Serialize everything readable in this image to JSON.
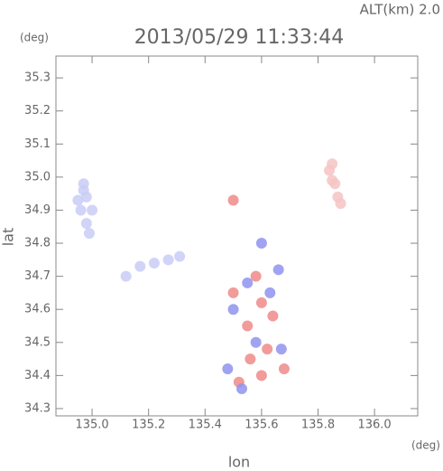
{
  "chart_data": {
    "type": "scatter",
    "title": "2013/05/29 11:33:44",
    "altitude_label": "ALT(km) 2.0",
    "y_unit": "(deg)",
    "x_unit": "(deg)",
    "x_label": "lon",
    "y_label": "lat",
    "xlim": [
      134.872,
      136.153
    ],
    "ylim": [
      34.278,
      35.366
    ],
    "xticks": [
      {
        "value": 135,
        "label": "135.0"
      },
      135.2,
      135.4,
      135.6,
      135.8,
      {
        "value": 136,
        "label": "136.0"
      }
    ],
    "yticks": [
      34.3,
      34.4,
      34.5,
      34.6,
      34.7,
      34.8,
      34.9,
      {
        "value": 35,
        "label": "35.0"
      },
      35.1,
      35.2,
      35.3
    ],
    "series": [
      {
        "color": "#c9ccf6",
        "x": [
          134.97,
          134.98,
          134.96,
          134.98,
          134.99,
          135.0,
          134.95,
          134.97,
          135.17,
          135.22,
          135.27,
          135.31,
          135.12
        ],
        "values": [
          34.98,
          34.94,
          34.9,
          34.86,
          34.83,
          34.9,
          34.93,
          34.96,
          34.73,
          34.74,
          34.75,
          34.76,
          34.7
        ]
      },
      {
        "color": "#f6c3c3",
        "x": [
          135.84,
          135.86,
          135.87,
          135.85,
          135.88,
          135.85
        ],
        "values": [
          35.02,
          34.98,
          34.94,
          34.99,
          34.92,
          35.04
        ]
      },
      {
        "color": "#f08a8a",
        "x": [
          135.5,
          135.6,
          135.55,
          135.62,
          135.52,
          135.6,
          135.68,
          135.5,
          135.58,
          135.64,
          135.56
        ],
        "values": [
          34.65,
          34.62,
          34.55,
          34.48,
          34.38,
          34.4,
          34.42,
          34.93,
          34.7,
          34.58,
          34.45
        ]
      },
      {
        "color": "#8f93ee",
        "x": [
          135.48,
          135.55,
          135.63,
          135.58,
          135.67,
          135.6,
          135.53,
          135.66,
          135.5
        ],
        "values": [
          34.42,
          34.68,
          34.65,
          34.5,
          34.48,
          34.8,
          34.36,
          34.72,
          34.6
        ]
      }
    ]
  }
}
